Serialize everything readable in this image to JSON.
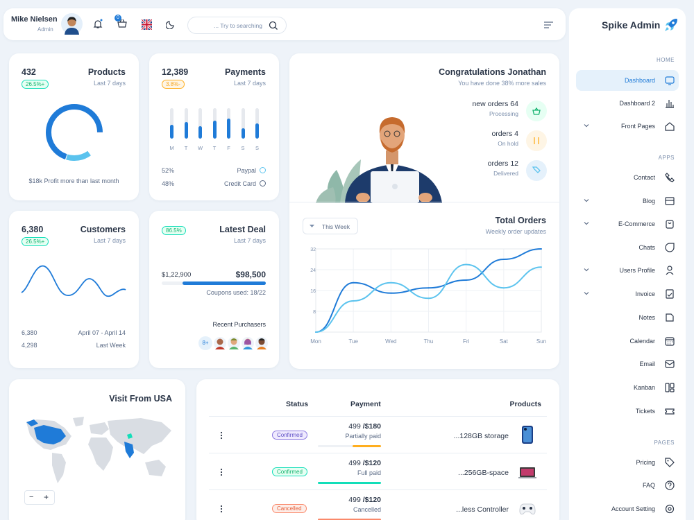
{
  "header": {
    "user_name": "Mike Nielsen",
    "user_role": "Admin",
    "cart_count": "0",
    "search_placeholder": "... Try to searching"
  },
  "sidebar": {
    "brand": "Spike Admin",
    "sections": {
      "home": "HOME",
      "apps": "APPS",
      "pages": "PAGES"
    },
    "items": [
      {
        "label": "Dashboard",
        "icon": "screen-icon"
      },
      {
        "label": "Dashboard 2",
        "icon": "bar-chart-icon"
      },
      {
        "label": "Front Pages",
        "icon": "home-icon"
      },
      {
        "label": "Contact",
        "icon": "phone-icon"
      },
      {
        "label": "Blog",
        "icon": "blog-icon"
      },
      {
        "label": "E-Commerce",
        "icon": "bag-icon"
      },
      {
        "label": "Chats",
        "icon": "chat-icon"
      },
      {
        "label": "Users Profile",
        "icon": "user-icon"
      },
      {
        "label": "Invoice",
        "icon": "invoice-icon"
      },
      {
        "label": "Notes",
        "icon": "note-icon"
      },
      {
        "label": "Calendar",
        "icon": "calendar-icon"
      },
      {
        "label": "Email",
        "icon": "mail-icon"
      },
      {
        "label": "Kanban",
        "icon": "kanban-icon"
      },
      {
        "label": "Tickets",
        "icon": "ticket-icon"
      },
      {
        "label": "Pricing",
        "icon": "tag-icon"
      },
      {
        "label": "FAQ",
        "icon": "help-icon"
      },
      {
        "label": "Account Setting",
        "icon": "settings-icon"
      }
    ]
  },
  "products": {
    "value": "432",
    "title": "Products",
    "badge": "26.5%+",
    "period": "Last 7 days",
    "footer": "$18k Profit more than last month"
  },
  "payments": {
    "value": "12,389",
    "title": "Payments",
    "badge": "3.8%-",
    "period": "Last 7 days",
    "days": [
      "M",
      "T",
      "W",
      "T",
      "F",
      "S",
      "S"
    ],
    "levels": [
      0.45,
      0.55,
      0.4,
      0.6,
      0.65,
      0.35,
      0.5
    ],
    "methods": [
      {
        "pct": "52%",
        "name": "Paypal"
      },
      {
        "pct": "48%",
        "name": "Credit Card"
      }
    ]
  },
  "congrats": {
    "title": "Congratulations Jonathan",
    "subtitle": "You have done 38% more sales",
    "orders": [
      {
        "title": "new orders 64",
        "status": "Processing",
        "icon": "basket-icon"
      },
      {
        "title": "orders 4",
        "status": "On hold",
        "icon": "pause-icon"
      },
      {
        "title": "orders 12",
        "status": "Delivered",
        "icon": "delivery-icon"
      }
    ]
  },
  "customers": {
    "value": "6,380",
    "title": "Customers",
    "badge": "26.5%+",
    "period": "Last 7 days",
    "rows": [
      {
        "value": "6,380",
        "label": "April 07 - April 14"
      },
      {
        "value": "4,298",
        "label": "Last Week"
      }
    ]
  },
  "deal": {
    "badge": "86.5%",
    "title": "Latest Deal",
    "period": "Last 7 days",
    "current": "$1,22,900",
    "target": "$98,500",
    "progress": 0.8,
    "coupons": "Coupons used: 18/22",
    "purchasers_title": "Recent Purchasers",
    "more": "8+"
  },
  "orders_chart": {
    "filter": "This Week",
    "chart_data": {
      "type": "line",
      "title": "Total Orders",
      "subtitle": "Weekly order updates",
      "categories": [
        "Mon",
        "Tue",
        "Wed",
        "Thu",
        "Fri",
        "Sat",
        "Sun"
      ],
      "yticks": [
        0,
        8,
        16,
        24,
        32
      ],
      "ylim": [
        0,
        32
      ],
      "series": [
        {
          "values": [
            0,
            19,
            15,
            17,
            20,
            28,
            32
          ],
          "color": "#1f7bd8"
        },
        {
          "values": [
            0,
            12,
            19,
            13,
            26,
            17,
            25
          ],
          "color": "#5bc3ee"
        }
      ]
    }
  },
  "visits": {
    "title": "Visit From USA",
    "zoom_out": "−",
    "zoom_in": "+"
  },
  "table": {
    "headers": {
      "status": "Status",
      "payment": "Payment",
      "products": "Products"
    },
    "rows": [
      {
        "status": "Confirmed",
        "status_class": "c1",
        "amount": "499",
        "total": "/$180",
        "payment_status": "Partially paid",
        "progress": 0.45,
        "bar_color": "#ffae1f",
        "product": "...128GB storage",
        "img": "phone"
      },
      {
        "status": "Confirmed",
        "status_class": "c2",
        "amount": "499",
        "total": "/$120",
        "payment_status": "Full paid",
        "progress": 1,
        "bar_color": "#13deb9",
        "product": "...256GB-space",
        "img": "laptop"
      },
      {
        "status": "Cancelled",
        "status_class": "c3",
        "amount": "499",
        "total": "/$120",
        "payment_status": "Cancelled",
        "progress": 1,
        "bar_color": "#fa896b",
        "product": "...less Controller",
        "img": "controller"
      }
    ]
  }
}
